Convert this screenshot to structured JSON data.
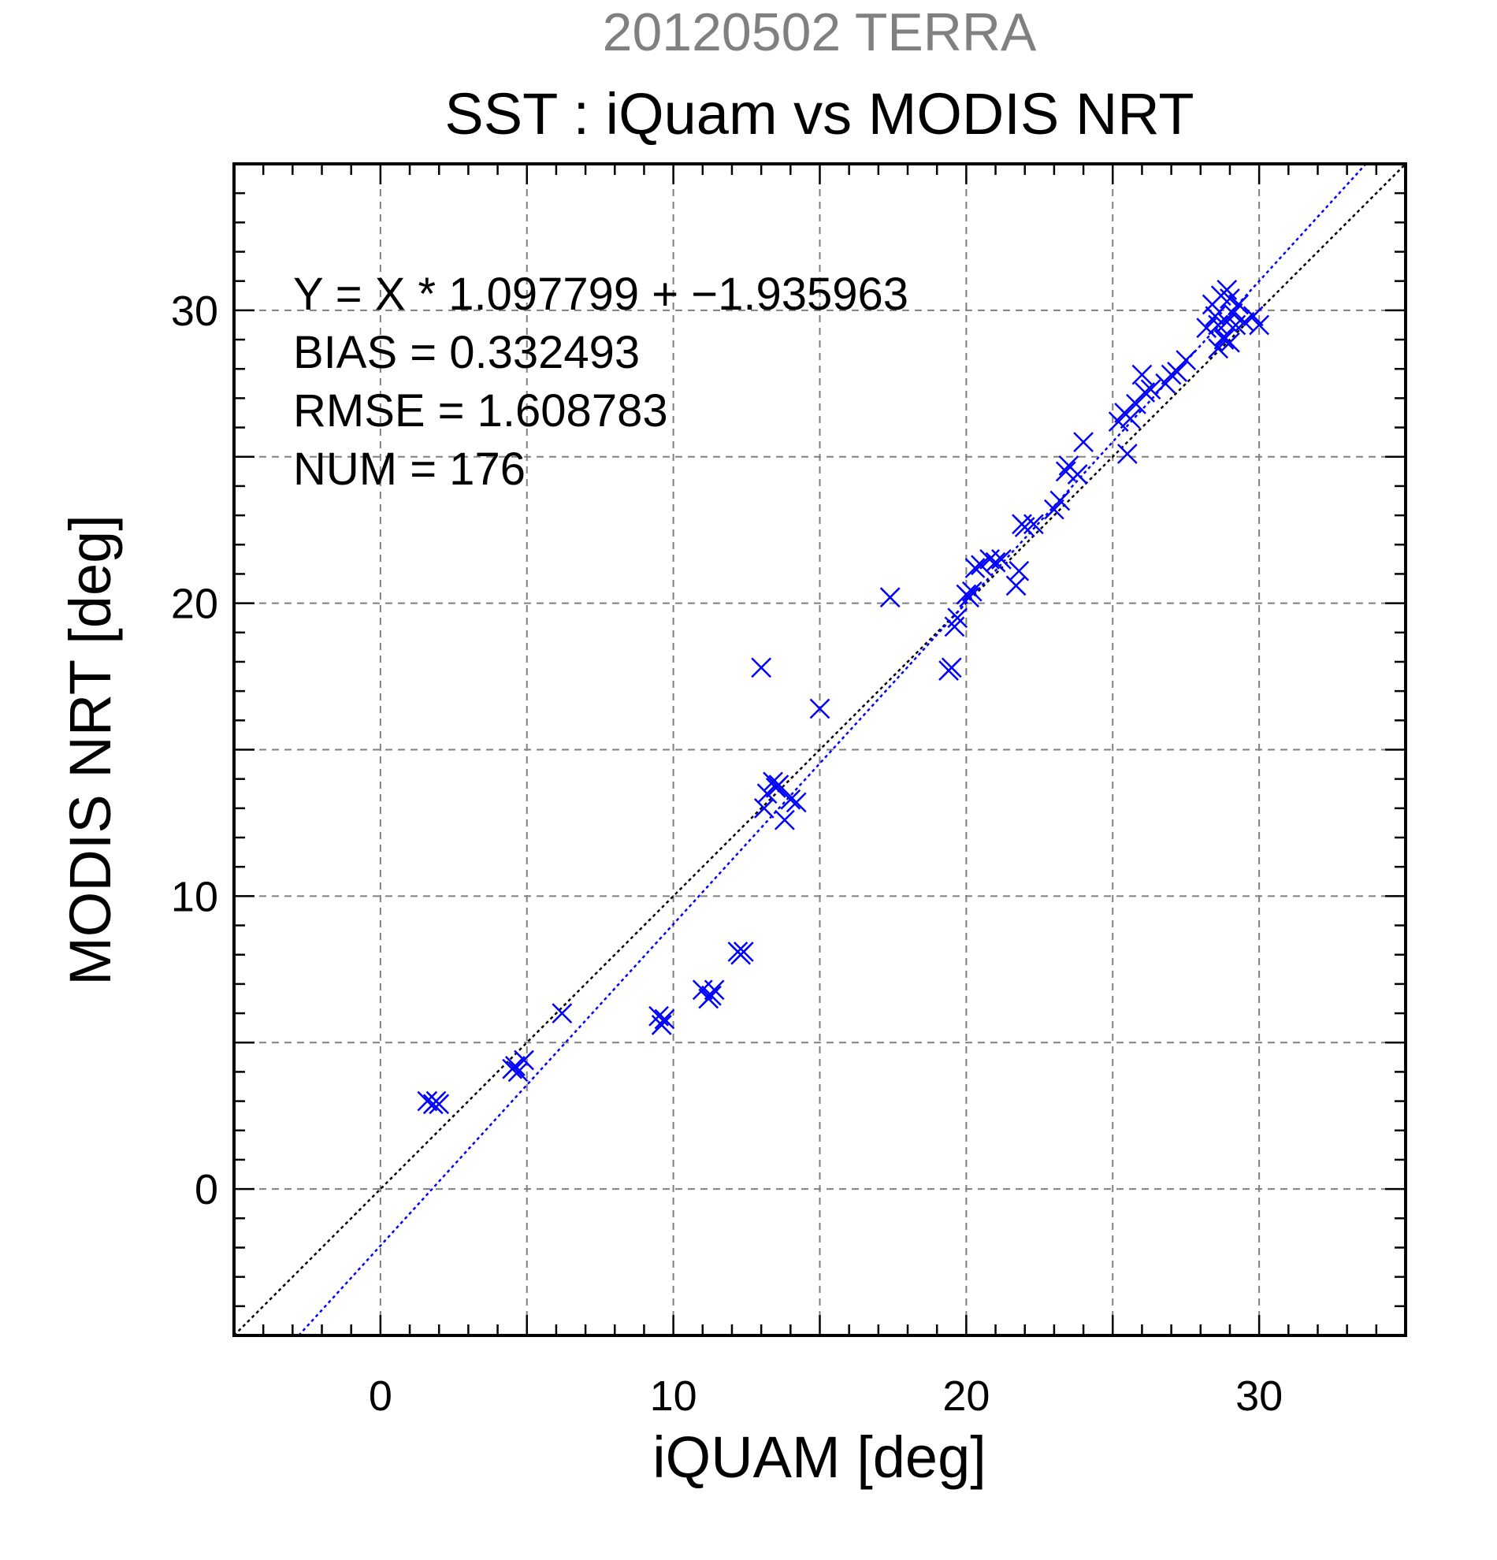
{
  "supertitle": "20120502 TERRA",
  "colors": {
    "points": "#0000ff",
    "fit_line": "#0000ff",
    "identity_line": "#000000",
    "supertitle": "#808080"
  },
  "stats": {
    "equation": "Y = X * 1.097799 + −1.935963",
    "bias": "BIAS = 0.332493",
    "rmse": "RMSE = 1.608783",
    "num": "NUM = 176"
  },
  "chart_data": {
    "type": "scatter",
    "title": "SST : iQuam vs MODIS NRT",
    "xlabel": "iQUAM [deg]",
    "ylabel": "MODIS NRT [deg]",
    "xlim": [
      -5,
      35
    ],
    "ylim": [
      -5,
      35
    ],
    "xticks": [
      0,
      10,
      20,
      30
    ],
    "yticks": [
      0,
      10,
      20,
      30
    ],
    "xtick_labels": [
      "0",
      "10",
      "20",
      "30"
    ],
    "ytick_labels": [
      "0",
      "10",
      "20",
      "30"
    ],
    "grid": true,
    "marker": "x",
    "fit_line": {
      "slope": 1.097799,
      "intercept": -1.935963,
      "style": "dotted"
    },
    "identity_line": {
      "slope": 1,
      "intercept": 0,
      "style": "dotted"
    },
    "x": [
      1.6,
      1.8,
      2.0,
      1.9,
      4.5,
      4.6,
      4.7,
      4.9,
      6.2,
      9.5,
      9.6,
      9.7,
      11.0,
      11.2,
      11.3,
      11.4,
      12.2,
      12.3,
      12.4,
      13.0,
      13.1,
      13.2,
      13.4,
      13.5,
      13.6,
      13.8,
      14.0,
      14.2,
      15.0,
      17.4,
      19.4,
      19.5,
      19.6,
      19.7,
      20.0,
      20.1,
      20.2,
      20.3,
      20.5,
      20.8,
      21.0,
      21.2,
      21.7,
      21.8,
      21.9,
      22.0,
      22.3,
      23.0,
      23.2,
      23.4,
      23.5,
      23.8,
      24.0,
      25.2,
      25.4,
      25.5,
      25.6,
      25.8,
      26.0,
      26.1,
      26.3,
      26.8,
      27.0,
      27.2,
      27.5,
      28.2,
      28.4,
      28.5,
      28.6,
      28.7,
      28.8,
      28.9,
      29.0,
      29.1,
      29.2,
      29.3,
      29.5,
      29.8,
      30.0,
      28.6,
      28.8,
      29.0,
      28.9
    ],
    "y": [
      3.0,
      2.9,
      2.9,
      3.0,
      4.1,
      4.2,
      4.0,
      4.4,
      6.0,
      5.9,
      5.6,
      5.8,
      6.8,
      6.5,
      6.6,
      6.8,
      8.1,
      8.0,
      8.1,
      17.8,
      13.0,
      13.5,
      13.9,
      13.7,
      13.8,
      12.6,
      13.3,
      13.2,
      16.4,
      20.2,
      17.7,
      17.8,
      19.2,
      19.5,
      20.3,
      20.2,
      20.4,
      21.2,
      21.3,
      21.5,
      21.4,
      21.5,
      20.6,
      21.1,
      22.7,
      22.6,
      22.7,
      23.2,
      23.5,
      24.5,
      24.7,
      24.4,
      25.5,
      26.2,
      26.5,
      25.1,
      26.3,
      26.8,
      27.8,
      27.2,
      27.3,
      27.5,
      27.8,
      27.9,
      28.3,
      29.4,
      30.2,
      29.8,
      29.5,
      30.5,
      29.0,
      29.6,
      30.4,
      29.9,
      29.5,
      30.2,
      29.6,
      29.8,
      29.5,
      28.7,
      29.1,
      28.9,
      30.7
    ]
  }
}
